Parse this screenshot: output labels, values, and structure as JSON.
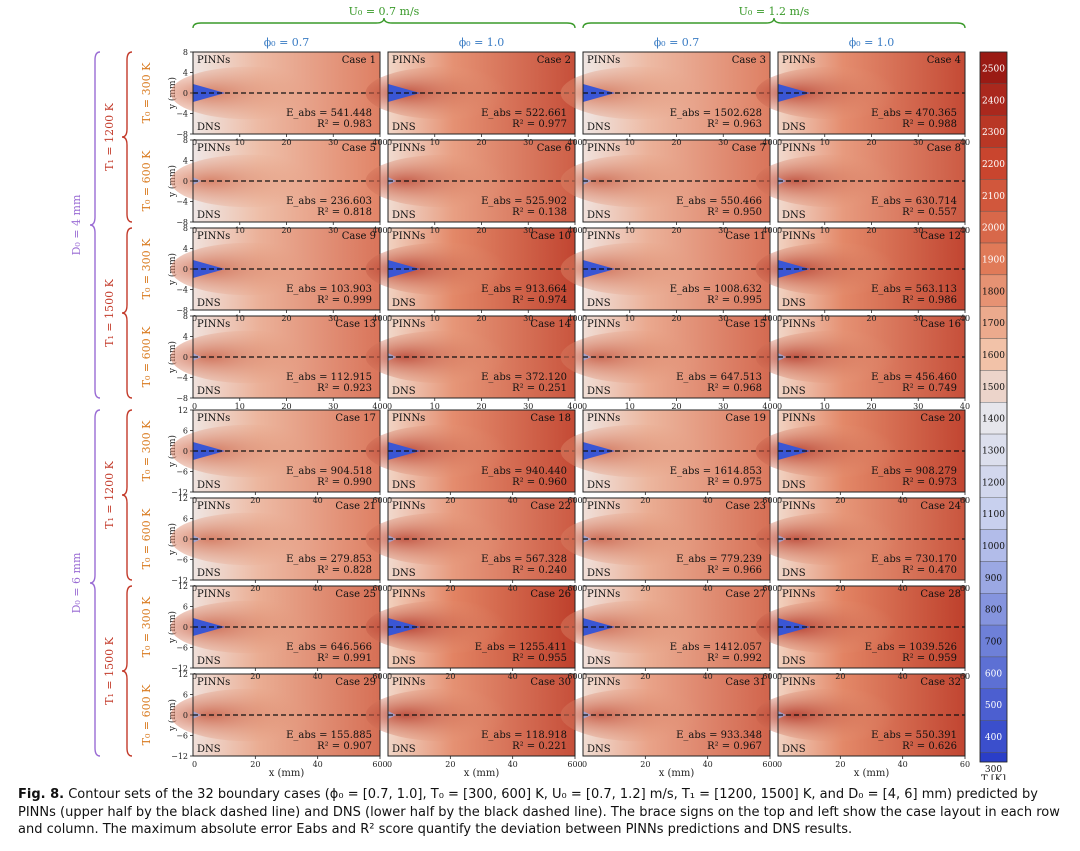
{
  "figure": {
    "top_groups": [
      {
        "label": "U₀ = 0.7 m/s",
        "color": "#3a9a2a"
      },
      {
        "label": "U₀ = 1.2 m/s",
        "color": "#3a9a2a"
      }
    ],
    "columns": [
      {
        "label": "ϕ₀ = 0.7"
      },
      {
        "label": "ϕ₀ = 1.0"
      },
      {
        "label": "ϕ₀ = 0.7"
      },
      {
        "label": "ϕ₀ = 1.0"
      }
    ],
    "d0_groups": [
      {
        "label": "D₀ = 4 mm"
      },
      {
        "label": "D₀ = 6 mm"
      }
    ],
    "t1_groups": [
      {
        "label": "T₁ = 1200 K"
      },
      {
        "label": "T₁ = 1500 K"
      },
      {
        "label": "T₁ = 1200 K"
      },
      {
        "label": "T₁ = 1500 K"
      }
    ],
    "row_labels": [
      "T₀ = 300 K",
      "T₀ = 600 K",
      "T₀ = 300 K",
      "T₀ = 600 K",
      "T₀ = 300 K",
      "T₀ = 600 K",
      "T₀ = 300 K",
      "T₀ = 600 K"
    ],
    "y_axis_label": "y (mm)",
    "x_axis_label": "x (mm)",
    "panel_top_label": "PINNs",
    "panel_bottom_label": "DNS",
    "y_ticks_d4": [
      "8",
      "4",
      "0",
      "−4",
      "−8"
    ],
    "y_ticks_d6": [
      "12",
      "6",
      "0",
      "−6",
      "−12"
    ],
    "x_ticks_d4": [
      "10",
      "20",
      "30",
      "40"
    ],
    "x_ticks_d6": [
      "20",
      "40",
      "60"
    ],
    "colorbar": {
      "unit_label": "T [K]",
      "min_label": "300",
      "ticks": [
        "2500",
        "2400",
        "2300",
        "2200",
        "2100",
        "2000",
        "1900",
        "1800",
        "1700",
        "1600",
        "1500",
        "1400",
        "1300",
        "1200",
        "1100",
        "1000",
        "900",
        "800",
        "700",
        "600",
        "500",
        "400"
      ]
    },
    "cases": [
      {
        "name": "Case 1",
        "eabs": "E_abs = 541.448",
        "r2": "R² = 0.983",
        "jet": true,
        "heat": 0.3
      },
      {
        "name": "Case 2",
        "eabs": "E_abs = 522.661",
        "r2": "R² = 0.977",
        "jet": true,
        "heat": 0.75
      },
      {
        "name": "Case 3",
        "eabs": "E_abs = 1502.628",
        "r2": "R² = 0.963",
        "jet": true,
        "heat": 0.3
      },
      {
        "name": "Case 4",
        "eabs": "E_abs = 470.365",
        "r2": "R² = 0.988",
        "jet": true,
        "heat": 0.8
      },
      {
        "name": "Case 5",
        "eabs": "E_abs = 236.603",
        "r2": "R² = 0.818",
        "jet": false,
        "heat": 0.25
      },
      {
        "name": "Case 6",
        "eabs": "E_abs = 525.902",
        "r2": "R² = 0.138",
        "jet": false,
        "heat": 0.6
      },
      {
        "name": "Case 7",
        "eabs": "E_abs = 550.466",
        "r2": "R² = 0.950",
        "jet": false,
        "heat": 0.4
      },
      {
        "name": "Case 8",
        "eabs": "E_abs = 630.714",
        "r2": "R² = 0.557",
        "jet": false,
        "heat": 0.65
      },
      {
        "name": "Case 9",
        "eabs": "E_abs = 103.903",
        "r2": "R² = 0.999",
        "jet": true,
        "heat": 0.4
      },
      {
        "name": "Case 10",
        "eabs": "E_abs = 913.664",
        "r2": "R² = 0.974",
        "jet": true,
        "heat": 0.85
      },
      {
        "name": "Case 11",
        "eabs": "E_abs = 1008.632",
        "r2": "R² = 0.995",
        "jet": true,
        "heat": 0.4
      },
      {
        "name": "Case 12",
        "eabs": "E_abs = 563.113",
        "r2": "R² = 0.986",
        "jet": true,
        "heat": 0.85
      },
      {
        "name": "Case 13",
        "eabs": "E_abs = 112.915",
        "r2": "R² = 0.923",
        "jet": false,
        "heat": 0.4
      },
      {
        "name": "Case 14",
        "eabs": "E_abs = 372.120",
        "r2": "R² = 0.251",
        "jet": false,
        "heat": 0.7
      },
      {
        "name": "Case 15",
        "eabs": "E_abs = 647.513",
        "r2": "R² = 0.968",
        "jet": false,
        "heat": 0.5
      },
      {
        "name": "Case 16",
        "eabs": "E_abs = 456.460",
        "r2": "R² = 0.749",
        "jet": false,
        "heat": 0.75
      },
      {
        "name": "Case 17",
        "eabs": "E_abs = 904.518",
        "r2": "R² = 0.990",
        "jet": true,
        "heat": 0.35
      },
      {
        "name": "Case 18",
        "eabs": "E_abs = 940.440",
        "r2": "R² = 0.960",
        "jet": true,
        "heat": 0.8
      },
      {
        "name": "Case 19",
        "eabs": "E_abs = 1614.853",
        "r2": "R² = 0.975",
        "jet": true,
        "heat": 0.35
      },
      {
        "name": "Case 20",
        "eabs": "E_abs = 908.279",
        "r2": "R² = 0.973",
        "jet": true,
        "heat": 0.85
      },
      {
        "name": "Case 21",
        "eabs": "E_abs = 279.853",
        "r2": "R² = 0.828",
        "jet": false,
        "heat": 0.3
      },
      {
        "name": "Case 22",
        "eabs": "E_abs = 567.328",
        "r2": "R² = 0.240",
        "jet": false,
        "heat": 0.65
      },
      {
        "name": "Case 23",
        "eabs": "E_abs = 779.239",
        "r2": "R² = 0.966",
        "jet": false,
        "heat": 0.45
      },
      {
        "name": "Case 24",
        "eabs": "E_abs = 730.170",
        "r2": "R² = 0.470",
        "jet": false,
        "heat": 0.7
      },
      {
        "name": "Case 25",
        "eabs": "E_abs = 646.566",
        "r2": "R² = 0.991",
        "jet": true,
        "heat": 0.45
      },
      {
        "name": "Case 26",
        "eabs": "E_abs = 1255.411",
        "r2": "R² = 0.955",
        "jet": true,
        "heat": 0.9
      },
      {
        "name": "Case 27",
        "eabs": "E_abs = 1412.057",
        "r2": "R² = 0.992",
        "jet": true,
        "heat": 0.45
      },
      {
        "name": "Case 28",
        "eabs": "E_abs = 1039.526",
        "r2": "R² = 0.959",
        "jet": true,
        "heat": 0.9
      },
      {
        "name": "Case 29",
        "eabs": "E_abs = 155.885",
        "r2": "R² = 0.907",
        "jet": false,
        "heat": 0.45
      },
      {
        "name": "Case 30",
        "eabs": "E_abs = 118.918",
        "r2": "R² = 0.221",
        "jet": false,
        "heat": 0.75
      },
      {
        "name": "Case 31",
        "eabs": "E_abs = 933.348",
        "r2": "R² = 0.967",
        "jet": false,
        "heat": 0.55
      },
      {
        "name": "Case 32",
        "eabs": "E_abs = 550.391",
        "r2": "R² = 0.626",
        "jet": false,
        "heat": 0.85
      }
    ]
  },
  "caption": {
    "label": "Fig. 8.",
    "text": "Contour sets of the 32 boundary cases (ϕ₀ = [0.7, 1.0], T₀ = [300, 600] K, U₀ = [0.7, 1.2] m/s, T₁ = [1200, 1500] K, and D₀ = [4, 6] mm) predicted by PINNs (upper half by the black dashed line) and DNS (lower half by the black dashed line). The brace signs on the top and left show the case layout in each row and column. The maximum absolute error Eabs and R² score quantify the deviation between PINNs predictions and DNS results."
  }
}
